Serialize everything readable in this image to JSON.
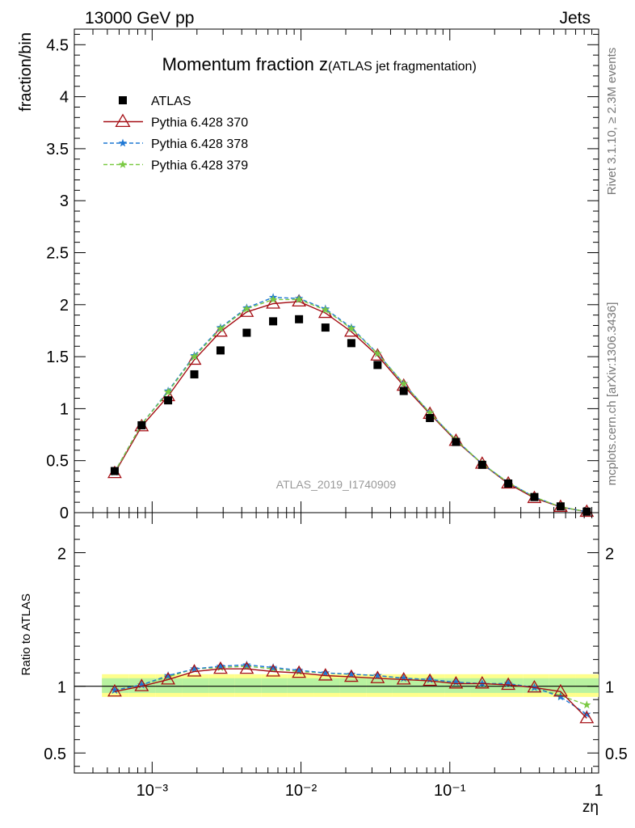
{
  "header": {
    "energy": "13000 GeV pp",
    "process": "Jets"
  },
  "side_labels": {
    "rivet": "Rivet 3.1.10, ≥ 2.3M events",
    "mcplots": "mcplots.cern.ch [arXiv:1306.3436]"
  },
  "chart_data": [
    {
      "type": "scatter",
      "panel": "main",
      "title": "Momentum fraction z",
      "subtitle": "(ATLAS jet fragmentation)",
      "ylabel": "fraction/bin",
      "analysis_label": "ATLAS_2019_I1740909",
      "xscale": "log",
      "xlim": [
        0.0003,
        1
      ],
      "ylim": [
        0,
        4.65
      ],
      "yticks": [
        "0",
        "0.5",
        "1",
        "1.5",
        "2",
        "2.5",
        "3",
        "3.5",
        "4",
        "4.5"
      ],
      "legend_position": "top-left",
      "x": [
        0.00056,
        0.00085,
        0.00128,
        0.00192,
        0.00288,
        0.00432,
        0.0065,
        0.0097,
        0.0146,
        0.0218,
        0.0327,
        0.049,
        0.0735,
        0.11,
        0.165,
        0.247,
        0.37,
        0.555,
        0.832
      ],
      "series": [
        {
          "name": "ATLAS",
          "color": "#000000",
          "marker": "square",
          "values": [
            0.4,
            0.84,
            1.08,
            1.33,
            1.56,
            1.73,
            1.84,
            1.86,
            1.78,
            1.63,
            1.42,
            1.17,
            0.91,
            0.68,
            0.46,
            0.28,
            0.15,
            0.06,
            0.01
          ]
        },
        {
          "name": "Pythia 6.428 370",
          "color": "#a50f15",
          "marker": "triangle",
          "line": "solid",
          "values": [
            0.38,
            0.83,
            1.12,
            1.47,
            1.74,
            1.93,
            2.01,
            2.03,
            1.92,
            1.74,
            1.51,
            1.22,
            0.95,
            0.69,
            0.47,
            0.28,
            0.14,
            0.055,
            0.008
          ]
        },
        {
          "name": "Pythia 6.428 378",
          "color": "#1f78d4",
          "marker": "star",
          "line": "dashed",
          "values": [
            0.39,
            0.85,
            1.17,
            1.51,
            1.78,
            1.97,
            2.07,
            2.06,
            1.96,
            1.78,
            1.53,
            1.24,
            0.96,
            0.7,
            0.47,
            0.29,
            0.15,
            0.055,
            0.008
          ]
        },
        {
          "name": "Pythia 6.428 379",
          "color": "#7ac943",
          "marker": "star",
          "line": "dashed",
          "values": [
            0.39,
            0.85,
            1.16,
            1.5,
            1.77,
            1.96,
            2.05,
            2.05,
            1.95,
            1.77,
            1.53,
            1.24,
            0.96,
            0.7,
            0.47,
            0.29,
            0.15,
            0.055,
            0.009
          ]
        }
      ]
    },
    {
      "type": "scatter",
      "panel": "ratio",
      "ylabel": "Ratio to ATLAS",
      "xlabel": "zη",
      "xscale": "log",
      "xlim": [
        0.0003,
        1
      ],
      "ylim": [
        0.35,
        2.3
      ],
      "yticks": [
        "0.5",
        "1",
        "2"
      ],
      "xticks": [
        "10⁻³",
        "10⁻²",
        "10⁻¹",
        "1"
      ],
      "reference_band": {
        "x_edges": [
          0.00046,
          0.0007,
          0.00105,
          0.0016,
          0.0024,
          0.0036,
          0.0054,
          0.0081,
          0.0122,
          0.0183,
          0.0274,
          0.041,
          0.062,
          0.092,
          0.138,
          0.207,
          0.31,
          0.465,
          0.7,
          1.0
        ],
        "inner": [
          0.95,
          1.06
        ],
        "outer": [
          0.92,
          1.09
        ]
      },
      "series": [
        {
          "name": "Pythia 6.428 370",
          "color": "#a50f15",
          "values": [
            0.96,
            1.0,
            1.05,
            1.11,
            1.13,
            1.13,
            1.11,
            1.1,
            1.08,
            1.07,
            1.06,
            1.05,
            1.04,
            1.02,
            1.02,
            1.01,
            0.99,
            0.96,
            0.76
          ]
        },
        {
          "name": "Pythia 6.428 378",
          "color": "#1f78d4",
          "values": [
            0.97,
            1.01,
            1.08,
            1.13,
            1.15,
            1.16,
            1.14,
            1.12,
            1.1,
            1.09,
            1.08,
            1.06,
            1.05,
            1.03,
            1.02,
            1.02,
            0.99,
            0.92,
            0.79
          ]
        },
        {
          "name": "Pythia 6.428 379",
          "color": "#7ac943",
          "values": [
            0.97,
            1.01,
            1.07,
            1.13,
            1.14,
            1.15,
            1.13,
            1.11,
            1.1,
            1.09,
            1.08,
            1.06,
            1.05,
            1.03,
            1.02,
            1.02,
            0.99,
            0.93,
            0.86
          ]
        }
      ]
    }
  ]
}
